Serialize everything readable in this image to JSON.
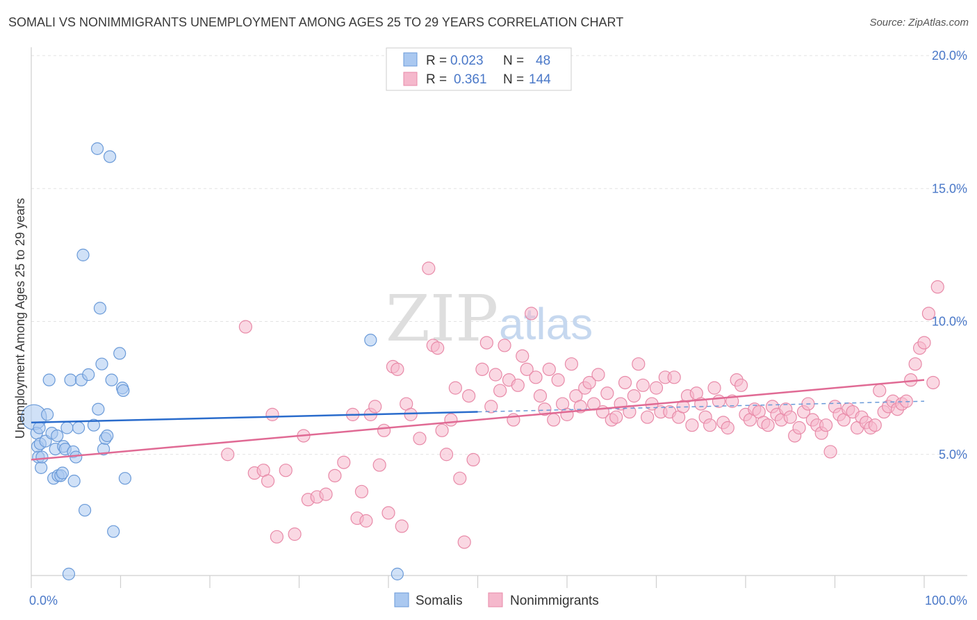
{
  "title": "SOMALI VS NONIMMIGRANTS UNEMPLOYMENT AMONG AGES 25 TO 29 YEARS CORRELATION CHART",
  "source": "Source: ZipAtlas.com",
  "watermark": {
    "zip": "ZIP",
    "atlas": "atlas"
  },
  "colors": {
    "somalis_fill": "#aac8f0",
    "somalis_stroke": "#6a9ad8",
    "somalis_line": "#2a6ccc",
    "nonimm_fill": "#f5b8cc",
    "nonimm_stroke": "#e88aa8",
    "nonimm_line": "#e06a94",
    "tick": "#4a78c8",
    "grid": "#e2e2e2"
  },
  "legend_top": [
    {
      "r_label": "R =",
      "r_value": "0.023",
      "n_label": "N =",
      "n_value": "48"
    },
    {
      "r_label": "R =",
      "r_value": "0.361",
      "n_label": "N =",
      "n_value": "144"
    }
  ],
  "chart_data": {
    "type": "scatter",
    "title": "SOMALI VS NONIMMIGRANTS UNEMPLOYMENT AMONG AGES 25 TO 29 YEARS CORRELATION CHART",
    "xlabel": "",
    "ylabel": "Unemployment Among Ages 25 to 29 years",
    "xlim": [
      0,
      100
    ],
    "ylim": [
      0,
      20
    ],
    "x_tick_labels": [
      "0.0%",
      "100.0%"
    ],
    "y_ticks": [
      5,
      10,
      15,
      20
    ],
    "y_tick_labels": [
      "5.0%",
      "10.0%",
      "15.0%",
      "20.0%"
    ],
    "grid": true,
    "legend_position": "bottom",
    "series": [
      {
        "name": "Somalis",
        "trend": {
          "x0": 0,
          "y0": 6.2,
          "x1": 50,
          "y1": 6.6,
          "dash_to_x": 100,
          "dash_to_y": 7.0
        },
        "points": [
          [
            0.3,
            6.4
          ],
          [
            0.6,
            5.8
          ],
          [
            0.7,
            5.3
          ],
          [
            0.8,
            4.9
          ],
          [
            0.9,
            6.0
          ],
          [
            1.0,
            5.4
          ],
          [
            1.1,
            4.5
          ],
          [
            1.2,
            4.9
          ],
          [
            1.6,
            5.5
          ],
          [
            1.8,
            6.5
          ],
          [
            2.0,
            7.8
          ],
          [
            2.3,
            5.8
          ],
          [
            2.5,
            4.1
          ],
          [
            2.7,
            5.2
          ],
          [
            2.9,
            5.7
          ],
          [
            3.0,
            4.2
          ],
          [
            3.3,
            4.2
          ],
          [
            3.5,
            4.3
          ],
          [
            3.6,
            5.3
          ],
          [
            3.8,
            5.2
          ],
          [
            4.0,
            6.0
          ],
          [
            4.2,
            0.5
          ],
          [
            4.4,
            7.8
          ],
          [
            4.7,
            5.1
          ],
          [
            4.8,
            4.0
          ],
          [
            5.0,
            4.9
          ],
          [
            5.3,
            6.0
          ],
          [
            5.6,
            7.8
          ],
          [
            5.8,
            12.5
          ],
          [
            6.0,
            2.9
          ],
          [
            6.4,
            8.0
          ],
          [
            7.0,
            6.1
          ],
          [
            7.4,
            16.5
          ],
          [
            7.5,
            6.7
          ],
          [
            7.7,
            10.5
          ],
          [
            7.9,
            8.4
          ],
          [
            8.1,
            5.2
          ],
          [
            8.3,
            5.6
          ],
          [
            8.5,
            5.7
          ],
          [
            8.8,
            16.2
          ],
          [
            9.0,
            7.8
          ],
          [
            9.2,
            2.1
          ],
          [
            9.9,
            8.8
          ],
          [
            10.2,
            7.5
          ],
          [
            10.3,
            7.4
          ],
          [
            10.5,
            4.1
          ],
          [
            38.0,
            9.3
          ],
          [
            41.0,
            0.5
          ]
        ]
      },
      {
        "name": "Nonimmigrants",
        "trend": {
          "x0": 0,
          "y0": 4.8,
          "x1": 100,
          "y1": 7.8
        },
        "points": [
          [
            22.0,
            5.0
          ],
          [
            24.0,
            9.8
          ],
          [
            25.0,
            4.3
          ],
          [
            26.0,
            4.4
          ],
          [
            26.5,
            4.0
          ],
          [
            27.0,
            6.5
          ],
          [
            27.5,
            1.9
          ],
          [
            28.5,
            4.4
          ],
          [
            29.5,
            2.0
          ],
          [
            30.5,
            5.7
          ],
          [
            31.0,
            3.3
          ],
          [
            32.0,
            3.4
          ],
          [
            33.0,
            3.5
          ],
          [
            34.0,
            4.2
          ],
          [
            35.0,
            4.7
          ],
          [
            36.0,
            6.5
          ],
          [
            36.5,
            2.6
          ],
          [
            37.0,
            3.6
          ],
          [
            37.5,
            2.5
          ],
          [
            38.0,
            6.5
          ],
          [
            38.5,
            6.8
          ],
          [
            39.0,
            4.6
          ],
          [
            39.5,
            5.9
          ],
          [
            40.0,
            2.8
          ],
          [
            40.5,
            8.3
          ],
          [
            41.0,
            8.2
          ],
          [
            41.5,
            2.3
          ],
          [
            42.0,
            6.9
          ],
          [
            42.5,
            6.5
          ],
          [
            43.5,
            5.6
          ],
          [
            44.5,
            12.0
          ],
          [
            45.0,
            9.1
          ],
          [
            45.5,
            9.0
          ],
          [
            46.0,
            5.9
          ],
          [
            46.5,
            5.0
          ],
          [
            47.0,
            6.3
          ],
          [
            47.5,
            7.5
          ],
          [
            48.0,
            4.1
          ],
          [
            48.5,
            1.7
          ],
          [
            49.0,
            7.2
          ],
          [
            49.5,
            4.8
          ],
          [
            50.5,
            8.2
          ],
          [
            51.0,
            9.2
          ],
          [
            51.5,
            6.8
          ],
          [
            52.0,
            8.0
          ],
          [
            52.5,
            7.4
          ],
          [
            53.0,
            9.1
          ],
          [
            53.5,
            7.8
          ],
          [
            54.0,
            6.3
          ],
          [
            54.5,
            7.6
          ],
          [
            55.0,
            8.7
          ],
          [
            55.5,
            8.2
          ],
          [
            56.0,
            10.3
          ],
          [
            56.5,
            7.9
          ],
          [
            57.0,
            7.2
          ],
          [
            57.5,
            6.7
          ],
          [
            58.0,
            8.2
          ],
          [
            58.5,
            6.3
          ],
          [
            59.0,
            7.8
          ],
          [
            59.5,
            6.9
          ],
          [
            60.0,
            6.5
          ],
          [
            60.5,
            8.4
          ],
          [
            61.0,
            7.2
          ],
          [
            61.5,
            6.8
          ],
          [
            62.0,
            7.5
          ],
          [
            62.5,
            7.7
          ],
          [
            63.0,
            6.9
          ],
          [
            63.5,
            8.0
          ],
          [
            64.0,
            6.6
          ],
          [
            64.5,
            7.3
          ],
          [
            65.0,
            6.3
          ],
          [
            65.5,
            6.4
          ],
          [
            66.0,
            6.9
          ],
          [
            66.5,
            7.7
          ],
          [
            67.0,
            6.6
          ],
          [
            67.5,
            7.2
          ],
          [
            68.0,
            8.4
          ],
          [
            68.5,
            7.6
          ],
          [
            69.0,
            6.4
          ],
          [
            69.5,
            6.9
          ],
          [
            70.0,
            7.5
          ],
          [
            70.5,
            6.6
          ],
          [
            71.0,
            7.9
          ],
          [
            71.5,
            6.6
          ],
          [
            72.0,
            7.9
          ],
          [
            72.5,
            6.4
          ],
          [
            73.0,
            6.8
          ],
          [
            73.5,
            7.2
          ],
          [
            74.0,
            6.1
          ],
          [
            74.5,
            7.3
          ],
          [
            75.0,
            6.9
          ],
          [
            75.5,
            6.4
          ],
          [
            76.0,
            6.1
          ],
          [
            76.5,
            7.5
          ],
          [
            77.0,
            7.0
          ],
          [
            77.5,
            6.2
          ],
          [
            78.0,
            6.0
          ],
          [
            78.5,
            7.0
          ],
          [
            79.0,
            7.8
          ],
          [
            79.5,
            7.6
          ],
          [
            80.0,
            6.5
          ],
          [
            80.5,
            6.3
          ],
          [
            81.0,
            6.7
          ],
          [
            81.5,
            6.6
          ],
          [
            82.0,
            6.2
          ],
          [
            82.5,
            6.1
          ],
          [
            83.0,
            6.8
          ],
          [
            83.5,
            6.5
          ],
          [
            84.0,
            6.3
          ],
          [
            84.5,
            6.7
          ],
          [
            85.0,
            6.4
          ],
          [
            85.5,
            5.7
          ],
          [
            86.0,
            6.0
          ],
          [
            86.5,
            6.6
          ],
          [
            87.0,
            6.9
          ],
          [
            87.5,
            6.3
          ],
          [
            88.0,
            6.1
          ],
          [
            88.5,
            5.8
          ],
          [
            89.0,
            6.1
          ],
          [
            89.5,
            5.1
          ],
          [
            90.0,
            6.8
          ],
          [
            90.5,
            6.5
          ],
          [
            91.0,
            6.3
          ],
          [
            91.5,
            6.7
          ],
          [
            92.0,
            6.6
          ],
          [
            92.5,
            6.0
          ],
          [
            93.0,
            6.4
          ],
          [
            93.5,
            6.2
          ],
          [
            94.0,
            6.0
          ],
          [
            94.5,
            6.1
          ],
          [
            95.0,
            7.4
          ],
          [
            95.5,
            6.6
          ],
          [
            96.0,
            6.8
          ],
          [
            96.5,
            7.0
          ],
          [
            97.0,
            6.7
          ],
          [
            97.5,
            6.9
          ],
          [
            98.0,
            7.0
          ],
          [
            98.5,
            7.8
          ],
          [
            99.0,
            8.4
          ],
          [
            99.5,
            9.0
          ],
          [
            100.0,
            9.2
          ],
          [
            100.5,
            10.3
          ],
          [
            101.0,
            7.7
          ],
          [
            101.5,
            11.3
          ]
        ]
      }
    ]
  },
  "legend_bottom": [
    {
      "label": "Somalis"
    },
    {
      "label": "Nonimmigrants"
    }
  ]
}
